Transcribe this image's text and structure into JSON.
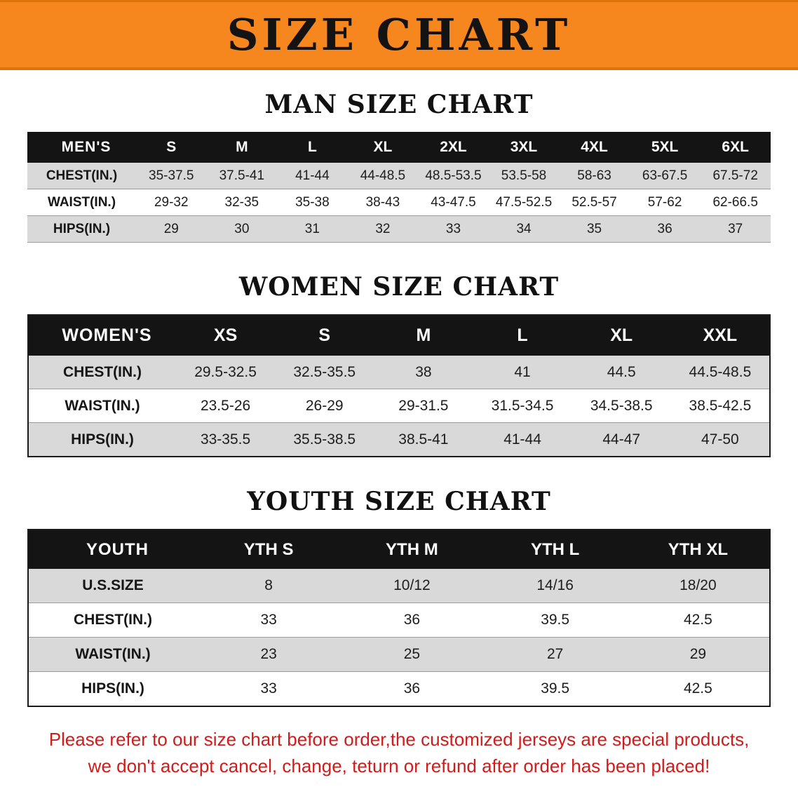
{
  "banner": {
    "title": "SIZE CHART"
  },
  "sections": [
    {
      "heading": "MAN SIZE CHART",
      "table": {
        "header_label": "MEN'S",
        "sizes": [
          "S",
          "M",
          "L",
          "XL",
          "2XL",
          "3XL",
          "4XL",
          "5XL",
          "6XL"
        ],
        "rows": [
          {
            "label": "CHEST(IN.)",
            "values": [
              "35-37.5",
              "37.5-41",
              "41-44",
              "44-48.5",
              "48.5-53.5",
              "53.5-58",
              "58-63",
              "63-67.5",
              "67.5-72"
            ]
          },
          {
            "label": "WAIST(IN.)",
            "values": [
              "29-32",
              "32-35",
              "35-38",
              "38-43",
              "43-47.5",
              "47.5-52.5",
              "52.5-57",
              "57-62",
              "62-66.5"
            ]
          },
          {
            "label": "HIPS(IN.)",
            "values": [
              "29",
              "30",
              "31",
              "32",
              "33",
              "34",
              "35",
              "36",
              "37"
            ]
          }
        ]
      }
    },
    {
      "heading": "WOMEN SIZE CHART",
      "table": {
        "header_label": "WOMEN'S",
        "sizes": [
          "XS",
          "S",
          "M",
          "L",
          "XL",
          "XXL"
        ],
        "rows": [
          {
            "label": "CHEST(IN.)",
            "values": [
              "29.5-32.5",
              "32.5-35.5",
              "38",
              "41",
              "44.5",
              "44.5-48.5"
            ]
          },
          {
            "label": "WAIST(IN.)",
            "values": [
              "23.5-26",
              "26-29",
              "29-31.5",
              "31.5-34.5",
              "34.5-38.5",
              "38.5-42.5"
            ]
          },
          {
            "label": "HIPS(IN.)",
            "values": [
              "33-35.5",
              "35.5-38.5",
              "38.5-41",
              "41-44",
              "44-47",
              "47-50"
            ]
          }
        ]
      }
    },
    {
      "heading": "YOUTH SIZE CHART",
      "table": {
        "header_label": "YOUTH",
        "sizes": [
          "YTH S",
          "YTH M",
          "YTH L",
          "YTH XL"
        ],
        "rows": [
          {
            "label": "U.S.SIZE",
            "values": [
              "8",
              "10/12",
              "14/16",
              "18/20"
            ]
          },
          {
            "label": "CHEST(IN.)",
            "values": [
              "33",
              "36",
              "39.5",
              "42.5"
            ]
          },
          {
            "label": "WAIST(IN.)",
            "values": [
              "23",
              "25",
              "27",
              "29"
            ]
          },
          {
            "label": "HIPS(IN.)",
            "values": [
              "33",
              "36",
              "39.5",
              "42.5"
            ]
          }
        ]
      }
    }
  ],
  "footer": {
    "line1": "Please refer to our size chart before order,the customized jerseys are special products,",
    "line2": "we don't accept cancel, change, teturn or refund after order has been placed!"
  },
  "colors": {
    "banner_bg": "#f6871f",
    "header_bg": "#141414",
    "row_alt_bg": "#d9d9d9",
    "footer_text": "#d11c1c"
  }
}
